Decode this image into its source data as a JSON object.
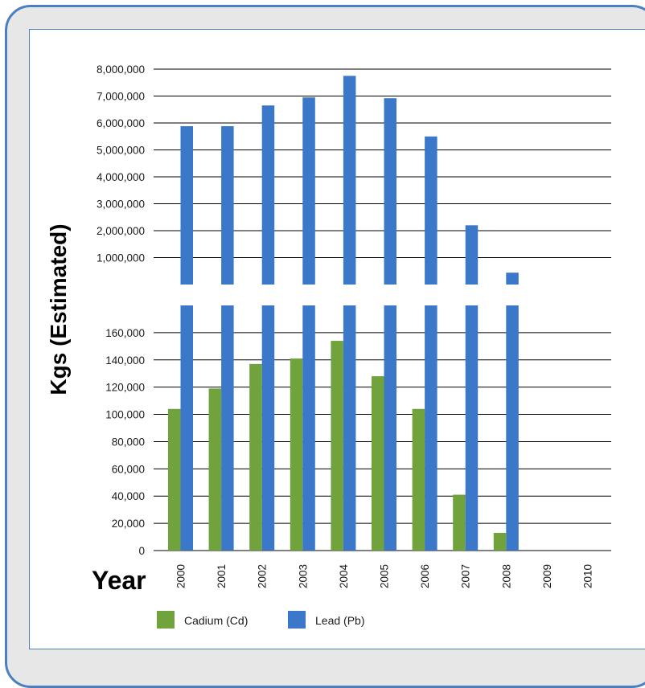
{
  "chart_data": {
    "type": "bar",
    "title": "",
    "ylabel": "Kgs (Estimated)",
    "xlabel": "Year",
    "y_axis_break": true,
    "ylim_lower_panel": [
      0,
      160000
    ],
    "ylim_upper_panel": [
      0,
      8000000
    ],
    "lower_ticks": [
      0,
      20000,
      40000,
      60000,
      80000,
      100000,
      120000,
      140000,
      160000
    ],
    "upper_ticks": [
      1000000,
      2000000,
      3000000,
      4000000,
      5000000,
      6000000,
      7000000,
      8000000
    ],
    "lower_tick_labels": [
      "0",
      "20,000",
      "40,000",
      "60,000",
      "80,000",
      "100,000",
      "120,000",
      "140,000",
      "160,000"
    ],
    "upper_tick_labels": [
      "1,000,000",
      "2,000,000",
      "3,000,000",
      "4,000,000",
      "5,000,000",
      "6,000,000",
      "7,000,000",
      "8,000,000"
    ],
    "categories": [
      "2000",
      "2001",
      "2002",
      "2003",
      "2004",
      "2005",
      "2006",
      "2007",
      "2008",
      "2009",
      "2010"
    ],
    "series": [
      {
        "name": "Cadium (Cd)",
        "color": "#70a33b",
        "values": [
          104000,
          119000,
          137000,
          141000,
          154000,
          128000,
          104000,
          41000,
          13000,
          null,
          null
        ]
      },
      {
        "name": "Lead (Pb)",
        "color": "#3b78c9",
        "values": [
          5880000,
          5880000,
          6650000,
          6950000,
          7750000,
          6920000,
          5500000,
          2200000,
          440000,
          null,
          null
        ]
      }
    ],
    "grid": true,
    "legend_position": "bottom"
  }
}
